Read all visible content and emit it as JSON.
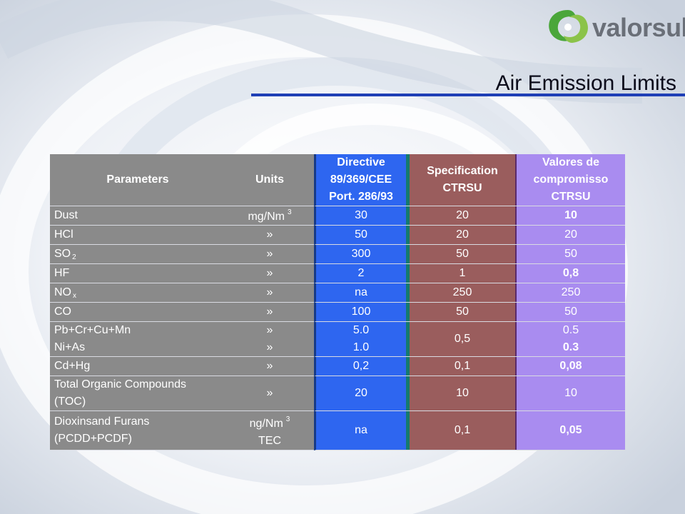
{
  "logo": {
    "text": "valorsul"
  },
  "title": "Air Emission Limits",
  "table": {
    "headers": {
      "parameters": "Parameters",
      "units": "Units",
      "directive": [
        "Directive",
        "89/369/CEE",
        "Port. 286/93"
      ],
      "specification": [
        "Specification",
        "CTRSU"
      ],
      "valores": [
        "Valores de",
        "compromisso",
        "CTRSU"
      ]
    },
    "rows": [
      {
        "param": "Dust",
        "unit": "mg/Nm",
        "unit_sup": "3",
        "directive": "30",
        "spec": "20",
        "valor": "10"
      },
      {
        "param": "HCl",
        "unit": "»",
        "directive": "50",
        "spec": "20",
        "valor": "20"
      },
      {
        "param": "SO",
        "param_sub": "2",
        "unit": "»",
        "directive": "300",
        "spec": "50",
        "valor": "50"
      },
      {
        "param": "HF",
        "unit": "»",
        "directive": "2",
        "spec": "1",
        "valor": "0,8"
      },
      {
        "param": "NO",
        "param_sub": "x",
        "unit": "»",
        "directive": "na",
        "spec": "250",
        "valor": "250"
      },
      {
        "param": "CO",
        "unit": "»",
        "directive": "100",
        "spec": "50",
        "valor": "50"
      },
      {
        "param": [
          "Pb+Cr+Cu+Mn",
          "Ni+As"
        ],
        "unit": [
          "»",
          "»"
        ],
        "directive": [
          "5.0",
          "1.0"
        ],
        "spec": "0,5",
        "valor": [
          "0.5",
          "0.3"
        ]
      },
      {
        "param": "Cd+Hg",
        "unit": "»",
        "directive": "0,2",
        "spec": "0,1",
        "valor": "0,08"
      },
      {
        "param": [
          "Total Organic Compounds",
          "(TOC)"
        ],
        "unit": "»",
        "directive": "20",
        "spec": "10",
        "valor": "10"
      },
      {
        "param": [
          "Dioxinsand Furans",
          "(PCDD+PCDF)"
        ],
        "unit": [
          "ng/Nm",
          "TEC"
        ],
        "unit_sup": "3",
        "directive": "na",
        "spec": "0,1",
        "valor": "0,05"
      }
    ]
  },
  "colors": {
    "parameters_bg": "#8a8a8a",
    "directive_bg": "#2e66f0",
    "specification_bg": "#9a5d5d",
    "valores_bg": "#a98cf0",
    "title_rule": "#1f3fb6"
  }
}
